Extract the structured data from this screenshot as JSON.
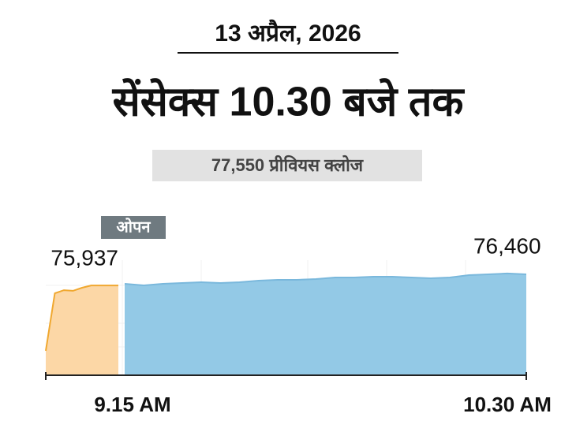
{
  "chart_data": {
    "type": "area",
    "date": "13 अप्रैल, 2026",
    "title": "सेंसेक्स 10.30 बजे तक",
    "subtitle": "77,550 प्रीवियस क्लोज",
    "annotation": "ओपन",
    "x_labels": [
      "9.15 AM",
      "10.30 AM"
    ],
    "ylim": [
      72000,
      76700
    ],
    "series": [
      {
        "name": "pre-open",
        "color": "#f0a830",
        "fill": "#fcd7a6",
        "values": [
          73070,
          75594,
          75730,
          75700,
          75836,
          75937,
          75937,
          75937,
          75937
        ],
        "value_labels": [
          null,
          null,
          null,
          null,
          null,
          null,
          null,
          null,
          "75,937"
        ]
      },
      {
        "name": "market",
        "color": "#7ab8dc",
        "fill": "#93c9e6",
        "values": [
          76009,
          75940,
          76009,
          76043,
          76078,
          76043,
          76078,
          76147,
          76182,
          76182,
          76216,
          76285,
          76285,
          76320,
          76320,
          76285,
          76250,
          76285,
          76390,
          76424,
          76460,
          76424
        ],
        "value_labels": [
          null,
          null,
          null,
          null,
          null,
          null,
          null,
          null,
          null,
          null,
          null,
          null,
          null,
          null,
          null,
          null,
          null,
          null,
          null,
          null,
          "76,460",
          null
        ]
      }
    ]
  }
}
